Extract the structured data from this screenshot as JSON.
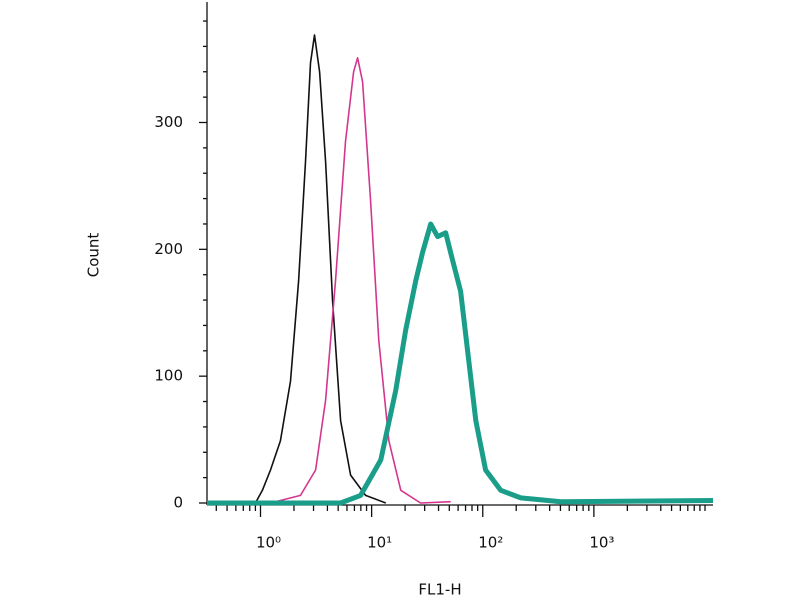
{
  "chart_data": {
    "type": "line",
    "xlabel": "FL1-H",
    "ylabel": "Count",
    "xscale": "log",
    "xlim": [
      0.33,
      11800
    ],
    "ylim": [
      0,
      395
    ],
    "xticks": [
      {
        "value": 1,
        "label": "10⁰"
      },
      {
        "value": 10,
        "label": "10¹"
      },
      {
        "value": 100,
        "label": "10²"
      },
      {
        "value": 1000,
        "label": "10³"
      }
    ],
    "xminorticks": [
      0.4,
      0.5,
      0.6,
      0.7,
      0.8,
      0.9,
      2,
      3,
      4,
      5,
      6,
      7,
      8,
      9,
      20,
      30,
      40,
      50,
      60,
      70,
      80,
      90,
      200,
      300,
      400,
      500,
      600,
      700,
      800,
      900,
      2000,
      3000,
      4000,
      5000,
      6000,
      7000,
      8000,
      9000,
      10000
    ],
    "yticks": [
      0,
      100,
      200,
      300
    ],
    "yminorticks": [
      20,
      40,
      60,
      80,
      120,
      140,
      160,
      180,
      220,
      240,
      260,
      280,
      320,
      340,
      360,
      380
    ],
    "series": [
      {
        "color": "#111111",
        "width": 1.6,
        "x": [
          0.9,
          1.04,
          1.23,
          1.51,
          1.86,
          2.2,
          2.54,
          2.82,
          3.06,
          3.4,
          3.85,
          4.45,
          5.26,
          6.47,
          8.83,
          13.4
        ],
        "values": [
          0,
          10,
          26,
          49,
          96,
          175,
          269,
          347,
          369,
          340,
          269,
          159,
          65,
          22,
          6,
          0
        ]
      },
      {
        "color": "#d4368f",
        "width": 1.6,
        "x": [
          1.23,
          2.29,
          3.13,
          3.85,
          4.73,
          5.82,
          6.88,
          7.47,
          8.29,
          9.79,
          11.6,
          14.3,
          18.3,
          27.6,
          51.5
        ],
        "values": [
          0,
          6,
          26,
          81,
          175,
          285,
          340,
          351,
          332,
          238,
          128,
          49,
          10,
          0,
          1
        ]
      },
      {
        "color": "#1a9e8a",
        "width": 5,
        "x": [
          0.33,
          5.26,
          7.96,
          12.1,
          16.5,
          20.2,
          24.9,
          28.8,
          34.0,
          39.2,
          46.4,
          53.6,
          63.2,
          73.1,
          86.5,
          106,
          145,
          220,
          505,
          11800
        ],
        "values": [
          0,
          0,
          6,
          34,
          89,
          136,
          175,
          198,
          220,
          210,
          213,
          191,
          167,
          120,
          65,
          26,
          10,
          4,
          1,
          2
        ]
      }
    ]
  }
}
